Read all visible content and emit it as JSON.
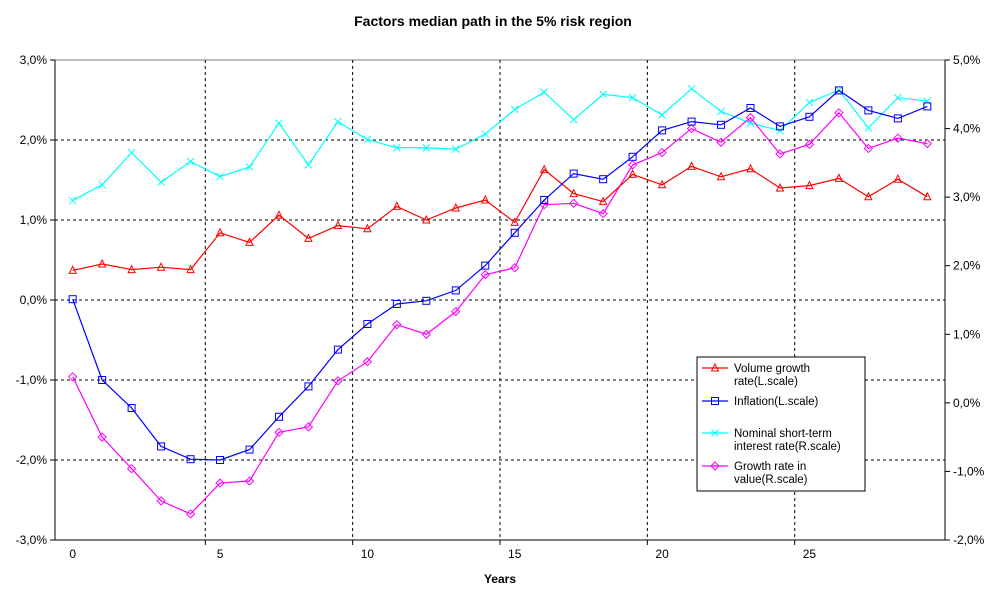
{
  "chart_data": {
    "type": "line",
    "title": "Factors median path in the 5% risk region",
    "xlabel": "Years",
    "x": [
      0,
      1,
      2,
      3,
      4,
      5,
      6,
      7,
      8,
      9,
      10,
      11,
      12,
      13,
      14,
      15,
      16,
      17,
      18,
      19,
      20,
      21,
      22,
      23,
      24,
      25,
      26,
      27,
      28,
      29
    ],
    "xlim": [
      -0.6,
      29.6
    ],
    "x_ticks": [
      0,
      5,
      10,
      15,
      20,
      25
    ],
    "x_tick_labels": [
      "0",
      "5",
      "10",
      "15",
      "20",
      "25"
    ],
    "left_axis": {
      "ylim": [
        -3,
        3
      ],
      "ticks": [
        -3,
        -2,
        -1,
        0,
        1,
        2,
        3
      ],
      "tick_labels": [
        "-3,0%",
        "-2,0%",
        "-1,0%",
        "0,0%",
        "1,0%",
        "2,0%",
        "3,0%"
      ]
    },
    "right_axis": {
      "ylim": [
        -2,
        5
      ],
      "ticks": [
        -2,
        -1,
        0,
        1,
        2,
        3,
        4,
        5
      ],
      "tick_labels": [
        "-2,0%",
        "-1,0%",
        "0,0%",
        "1,0%",
        "2,0%",
        "3,0%",
        "4,0%",
        "5,0%"
      ]
    },
    "grid": true,
    "legend_position": "lower-right",
    "series": [
      {
        "name": "Volume growth rate(L.scale)",
        "axis": "left",
        "color": "#FF0000",
        "marker": "triangle",
        "values": [
          0.37,
          0.45,
          0.38,
          0.41,
          0.38,
          0.84,
          0.72,
          1.06,
          0.77,
          0.93,
          0.89,
          1.17,
          1.0,
          1.15,
          1.25,
          0.97,
          1.63,
          1.33,
          1.23,
          1.57,
          1.44,
          1.67,
          1.54,
          1.64,
          1.4,
          1.43,
          1.52,
          1.29,
          1.51,
          1.29
        ]
      },
      {
        "name": "Inflation(L.scale)",
        "axis": "left",
        "color": "#0000FF",
        "marker": "square",
        "values": [
          0.01,
          -1.0,
          -1.35,
          -1.83,
          -1.99,
          -2.0,
          -1.87,
          -1.46,
          -1.08,
          -0.62,
          -0.3,
          -0.05,
          -0.01,
          0.12,
          0.43,
          0.84,
          1.25,
          1.58,
          1.51,
          1.79,
          2.12,
          2.23,
          2.19,
          2.4,
          2.17,
          2.29,
          2.62,
          2.37,
          2.27,
          2.42
        ]
      },
      {
        "name": "Nominal short-term interest rate(R.scale)",
        "axis": "right",
        "color": "#00FFFF",
        "marker": "x",
        "values": [
          2.95,
          3.18,
          3.65,
          3.22,
          3.52,
          3.3,
          3.44,
          4.08,
          3.47,
          4.1,
          3.84,
          3.72,
          3.72,
          3.7,
          3.92,
          4.28,
          4.53,
          4.13,
          4.5,
          4.45,
          4.2,
          4.58,
          4.25,
          4.08,
          3.97,
          4.38,
          4.56,
          4.01,
          4.45,
          4.4
        ]
      },
      {
        "name": "Growth rate in value(R.scale)",
        "axis": "right",
        "color": "#FF00FF",
        "marker": "diamond",
        "values": [
          0.38,
          -0.5,
          -0.96,
          -1.43,
          -1.62,
          -1.17,
          -1.14,
          -0.43,
          -0.35,
          0.32,
          0.6,
          1.14,
          1.0,
          1.33,
          1.87,
          1.97,
          2.89,
          2.91,
          2.76,
          3.47,
          3.65,
          4.0,
          3.8,
          4.16,
          3.63,
          3.77,
          4.23,
          3.71,
          3.86,
          3.78
        ]
      }
    ]
  }
}
